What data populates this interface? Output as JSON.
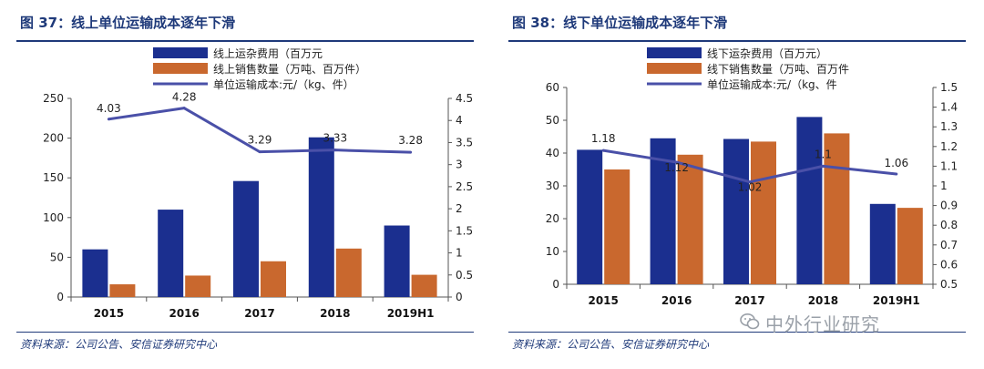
{
  "figures": [
    {
      "title": "图 37：线上单位运输成本逐年下滑",
      "source": "资料来源：公司公告、安信证券研究中心"
    },
    {
      "title": "图 38：线下单位运输成本逐年下滑",
      "source": "资料来源：公司公告、安信证券研究中心"
    }
  ],
  "watermark": "中外行业研究",
  "colors": {
    "bar1": "#1b2f8f",
    "bar2": "#c9682e",
    "line": "#4a50a8",
    "title": "#1f3a7a"
  },
  "chart_data": [
    {
      "type": "bar",
      "categories": [
        "2015",
        "2016",
        "2017",
        "2018",
        "2019H1"
      ],
      "series": [
        {
          "name": "线上运杂费用（百万元",
          "type": "bar",
          "axis": "left",
          "values": [
            60,
            110,
            146,
            201,
            90
          ]
        },
        {
          "name": "线上销售数量（万吨、百万件）",
          "type": "bar",
          "axis": "left",
          "values": [
            16,
            27,
            45,
            61,
            28
          ]
        },
        {
          "name": "单位运输成本:元/（kg、件）",
          "type": "line",
          "axis": "right",
          "values": [
            4.03,
            4.28,
            3.29,
            3.33,
            3.28
          ],
          "labels": [
            "4.03",
            "4.28",
            "3.29",
            "3.33",
            "3.28"
          ]
        }
      ],
      "ylim_left": [
        0,
        250
      ],
      "yticks_left": [
        "0",
        "50",
        "100",
        "150",
        "200",
        "250"
      ],
      "ylim_right": [
        0,
        4.5
      ],
      "yticks_right": [
        "0",
        "0.5",
        "1",
        "1.5",
        "2",
        "2.5",
        "3",
        "3.5",
        "4",
        "4.5"
      ],
      "legend_position": "top-center"
    },
    {
      "type": "bar",
      "categories": [
        "2015",
        "2016",
        "2017",
        "2018",
        "2019H1"
      ],
      "series": [
        {
          "name": "线下运杂费用（百万元）",
          "type": "bar",
          "axis": "left",
          "values": [
            41,
            44.5,
            44.3,
            51,
            24.5
          ]
        },
        {
          "name": "线下销售数量（万吨、百万件",
          "type": "bar",
          "axis": "left",
          "values": [
            35,
            39.5,
            43.5,
            46,
            23.3
          ]
        },
        {
          "name": "单位运输成本:元/（kg、件",
          "type": "line",
          "axis": "right",
          "values": [
            1.18,
            1.12,
            1.02,
            1.1,
            1.06
          ],
          "labels": [
            "1.18",
            "1.12",
            "1.02",
            "1.1",
            "1.06"
          ]
        }
      ],
      "ylim_left": [
        0,
        60
      ],
      "yticks_left": [
        "0",
        "10",
        "20",
        "30",
        "40",
        "50",
        "60"
      ],
      "ylim_right": [
        0.5,
        1.5
      ],
      "yticks_right": [
        "0.5",
        "0.6",
        "0.7",
        "0.8",
        "0.9",
        "1",
        "1.1",
        "1.2",
        "1.3",
        "1.4",
        "1.5"
      ],
      "legend_position": "top-center"
    }
  ]
}
